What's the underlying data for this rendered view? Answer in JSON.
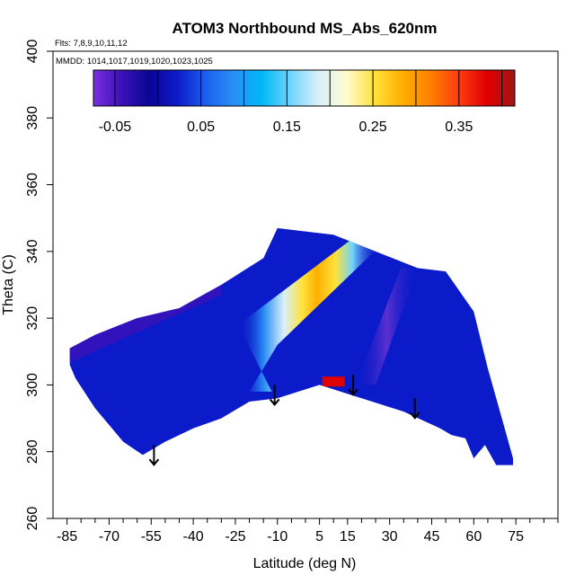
{
  "chart_data": {
    "type": "heatmap",
    "title": "ATOM3 Northbound MS_Abs_620nm",
    "flights_note": "Flts: 7,8,9,10,11,12",
    "dates_note": "MMDD: 1014,1017,1019,1020,1023,1025",
    "xlabel": "Latitude (deg N)",
    "ylabel": "Theta (C)",
    "xlim": [
      -90,
      90
    ],
    "ylim": [
      260,
      400
    ],
    "x_ticks": [
      -85,
      -70,
      -55,
      -40,
      -25,
      -10,
      5,
      15,
      30,
      45,
      60,
      75
    ],
    "x_tick_labels": [
      "-85",
      "-70",
      "-55",
      "-40",
      "-25",
      "-10",
      "5",
      "15",
      "30",
      "45",
      "60",
      "75"
    ],
    "y_ticks": [
      260,
      280,
      300,
      320,
      340,
      360,
      380,
      400
    ],
    "y_tick_labels": [
      "260",
      "280",
      "300",
      "320",
      "340",
      "360",
      "380",
      "400"
    ],
    "colorbar": {
      "range": [
        -0.075,
        0.415
      ],
      "ticks": [
        -0.05,
        0.05,
        0.15,
        0.25,
        0.35
      ],
      "tick_labels": [
        "-0.05",
        "0.05",
        "0.15",
        "0.25",
        "0.35"
      ],
      "colors": [
        "#7b2fe0",
        "#3a12b8",
        "#0b0596",
        "#0c1bc9",
        "#1a60f0",
        "#2a8ef5",
        "#00b8f8",
        "#6fd4fb",
        "#d8f0fb",
        "#fffbd0",
        "#ffe23a",
        "#ffaf00",
        "#ff7f00",
        "#ff3d10",
        "#e00000",
        "#a01515"
      ]
    },
    "data_extent": {
      "top_boundary": [
        [
          -84,
          311
        ],
        [
          -75,
          315
        ],
        [
          -60,
          320
        ],
        [
          -45,
          323
        ],
        [
          -30,
          330
        ],
        [
          -15,
          338
        ],
        [
          -10,
          347
        ],
        [
          0,
          346
        ],
        [
          10,
          345
        ],
        [
          25,
          340
        ],
        [
          40,
          335
        ],
        [
          50,
          334
        ],
        [
          60,
          322
        ],
        [
          65,
          305
        ],
        [
          70,
          290
        ],
        [
          74,
          278
        ]
      ],
      "bottom_boundary": [
        [
          74,
          276
        ],
        [
          68,
          276
        ],
        [
          64,
          282
        ],
        [
          60,
          278
        ],
        [
          57,
          284
        ],
        [
          52,
          285
        ],
        [
          48,
          287
        ],
        [
          35,
          292
        ],
        [
          20,
          296
        ],
        [
          5,
          300
        ],
        [
          -10,
          296
        ],
        [
          -20,
          295
        ],
        [
          -30,
          290
        ],
        [
          -40,
          287
        ],
        [
          -50,
          283
        ],
        [
          -58,
          279
        ],
        [
          -65,
          283
        ],
        [
          -75,
          293
        ],
        [
          -82,
          302
        ],
        [
          -84,
          306
        ]
      ]
    },
    "features": [
      {
        "name": "enhanced-band",
        "lat_range": [
          -20,
          15
        ],
        "theta_range": [
          300,
          342
        ],
        "peak_value": 0.3
      },
      {
        "name": "secondary-band",
        "lat_range": [
          18,
          40
        ],
        "theta_range": [
          300,
          335
        ],
        "peak_value": -0.06
      },
      {
        "name": "surface-spot",
        "lat": 10,
        "theta": 301,
        "value": 0.38
      }
    ],
    "markers": [
      {
        "lat": -54,
        "theta": 282
      },
      {
        "lat": -11,
        "theta": 300
      },
      {
        "lat": 17,
        "theta": 303
      },
      {
        "lat": 39,
        "theta": 296
      }
    ]
  }
}
